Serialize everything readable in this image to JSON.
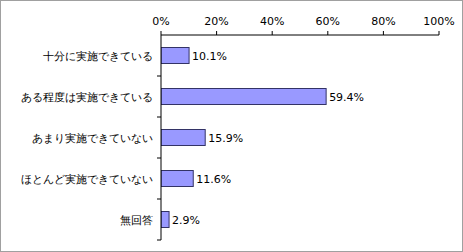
{
  "chart_data": {
    "type": "bar",
    "orientation": "horizontal",
    "categories": [
      "十分に実施できている",
      "ある程度は実施できている",
      "あまり実施できていない",
      "ほとんど実施できていない",
      "無回答"
    ],
    "values": [
      10.1,
      59.4,
      15.9,
      11.6,
      2.9
    ],
    "value_labels": [
      "10.1%",
      "59.4%",
      "15.9%",
      "11.6%",
      "2.9%"
    ],
    "color": "#9999ff",
    "xlim": [
      0,
      100
    ],
    "xticks": [
      {
        "value": 0,
        "label": "0%"
      },
      {
        "value": 20,
        "label": "20%"
      },
      {
        "value": 40,
        "label": "40%"
      },
      {
        "value": 60,
        "label": "60%"
      },
      {
        "value": 80,
        "label": "80%"
      },
      {
        "value": 100,
        "label": "100%"
      }
    ],
    "data_labels": true
  }
}
